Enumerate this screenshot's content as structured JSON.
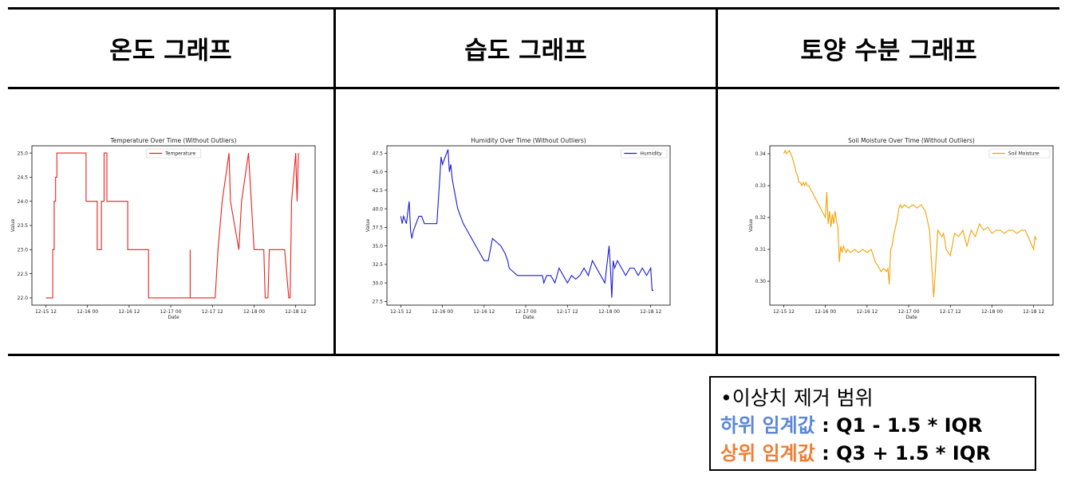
{
  "panels": [
    {
      "title": "온도 그래프"
    },
    {
      "title": "습도 그래프"
    },
    {
      "title": "토양 수분 그래프"
    }
  ],
  "note": {
    "heading": "•이상치 제거 범위",
    "lower_label": "하위 임계값",
    "lower_formula": ": Q1 - 1.5 * IQR",
    "upper_label": "상위 임계값",
    "upper_formula": ": Q3 + 1.5 * IQR"
  },
  "chart_data": [
    {
      "type": "line",
      "title": "Temperature Over Time (Without Outliers)",
      "xlabel": "Date",
      "ylabel": "Value",
      "legend": {
        "label": "Temperature",
        "position": "upper-center"
      },
      "color": "#e8201e",
      "ylim": [
        21.85,
        25.15
      ],
      "yticks": [
        "22.0",
        "22.5",
        "23.0",
        "23.5",
        "24.0",
        "24.5",
        "25.0"
      ],
      "xlim": [
        -0.167,
        3.233
      ],
      "xtick_labels": [
        "12-15 12",
        "12-16 00",
        "12-16 12",
        "12-17 00",
        "12-17 12",
        "12-18 00",
        "12-18 12"
      ],
      "x": [
        0.0,
        0.083,
        0.083,
        0.1,
        0.1,
        0.117,
        0.117,
        0.133,
        0.133,
        0.483,
        0.483,
        0.617,
        0.617,
        0.667,
        0.667,
        0.7,
        0.7,
        0.733,
        0.733,
        0.983,
        0.983,
        1.233,
        1.233,
        1.233,
        1.233,
        1.233,
        1.733,
        1.733,
        1.733,
        1.733,
        1.733,
        1.733,
        1.883,
        1.883,
        1.883,
        1.883,
        2.033,
        2.033,
        2.067,
        2.067,
        2.117,
        2.117,
        2.2,
        2.2,
        2.217,
        2.217,
        2.317,
        2.317,
        2.35,
        2.35,
        2.433,
        2.433,
        2.467,
        2.467,
        2.5,
        2.5,
        2.617,
        2.617,
        2.633,
        2.633,
        2.667,
        2.667,
        2.683,
        2.683,
        2.867,
        2.867,
        2.917,
        2.917,
        2.933,
        2.933,
        2.95,
        2.95,
        3.0,
        3.0,
        3.017,
        3.017,
        3.033
      ],
      "y": [
        22.0,
        22.0,
        23.0,
        23.0,
        24.0,
        24.0,
        24.5,
        24.5,
        25.0,
        25.0,
        24.0,
        24.0,
        23.0,
        23.0,
        24.0,
        24.0,
        25.0,
        25.0,
        24.0,
        24.0,
        23.0,
        23.0,
        22.0,
        22.0,
        22.0,
        22.0,
        22.0,
        22.0,
        23.0,
        23.0,
        22.0,
        22.0,
        22.0,
        22.0,
        22.0,
        22.0,
        22.0,
        22.0,
        23.0,
        23.0,
        24.0,
        24.0,
        25.0,
        25.0,
        24.0,
        24.0,
        23.0,
        23.0,
        24.0,
        24.0,
        25.0,
        25.0,
        24.0,
        24.0,
        23.0,
        23.0,
        23.0,
        23.0,
        22.0,
        22.0,
        22.0,
        22.0,
        23.0,
        23.0,
        23.0,
        23.0,
        22.0,
        22.0,
        22.0,
        22.0,
        24.0,
        24.0,
        25.0,
        25.0,
        24.0,
        24.0,
        25.0
      ]
    },
    {
      "type": "line",
      "title": "Humidity Over Time (Without Outliers)",
      "xlabel": "Date",
      "ylabel": "Value",
      "legend": {
        "label": "Humidity",
        "position": "upper-right"
      },
      "color": "#1a1adb",
      "ylim": [
        27.0,
        48.5
      ],
      "yticks": [
        "27.5",
        "30.0",
        "32.5",
        "35.0",
        "37.5",
        "40.0",
        "42.5",
        "45.0",
        "47.5"
      ],
      "xlim": [
        -0.167,
        3.233
      ],
      "xtick_labels": [
        "12-15 12",
        "12-16 00",
        "12-16 12",
        "12-17 00",
        "12-17 12",
        "12-18 00",
        "12-18 12"
      ],
      "x": [
        0.0,
        0.017,
        0.033,
        0.067,
        0.1,
        0.117,
        0.133,
        0.15,
        0.183,
        0.217,
        0.25,
        0.283,
        0.4,
        0.433,
        0.45,
        0.467,
        0.483,
        0.5,
        0.533,
        0.567,
        0.583,
        0.6,
        0.617,
        0.65,
        0.683,
        0.717,
        0.75,
        0.8,
        0.85,
        0.9,
        0.95,
        1.0,
        1.05,
        1.1,
        1.15,
        1.2,
        1.25,
        1.283,
        1.3,
        1.35,
        1.4,
        1.5,
        1.6,
        1.7,
        1.717,
        1.75,
        1.8,
        1.85,
        1.9,
        1.95,
        2.0,
        2.05,
        2.1,
        2.15,
        2.2,
        2.25,
        2.3,
        2.35,
        2.4,
        2.45,
        2.5,
        2.517,
        2.533,
        2.55,
        2.567,
        2.6,
        2.65,
        2.7,
        2.75,
        2.8,
        2.85,
        2.9,
        2.95,
        3.0,
        3.017,
        3.033
      ],
      "y": [
        39.0,
        38.0,
        39.0,
        38.0,
        41.0,
        37.0,
        36.0,
        37.0,
        38.0,
        39.0,
        39.0,
        38.0,
        38.0,
        38.0,
        41.0,
        44.0,
        47.0,
        46.0,
        47.0,
        48.0,
        45.0,
        46.0,
        44.0,
        42.0,
        40.0,
        39.0,
        38.0,
        37.0,
        36.0,
        35.0,
        34.0,
        33.0,
        33.0,
        36.0,
        35.5,
        35.0,
        34.0,
        33.0,
        32.0,
        31.5,
        31.0,
        31.0,
        31.0,
        31.0,
        30.0,
        31.0,
        31.0,
        30.0,
        32.0,
        31.0,
        30.0,
        31.0,
        30.5,
        31.0,
        32.0,
        31.0,
        33.0,
        32.0,
        31.0,
        30.0,
        35.0,
        32.0,
        28.0,
        33.0,
        32.0,
        33.0,
        32.0,
        31.0,
        32.0,
        32.0,
        31.0,
        32.0,
        31.0,
        32.0,
        29.0,
        29.0
      ]
    },
    {
      "type": "line",
      "title": "Soil Moisture Over Time (Without Outliers)",
      "xlabel": "Date",
      "ylabel": "Value",
      "legend": {
        "label": "Soil Moisture",
        "position": "upper-right"
      },
      "color": "#f5a000",
      "ylim": [
        0.2925,
        0.3425
      ],
      "yticks": [
        "0.30",
        "0.31",
        "0.32",
        "0.33",
        "0.34"
      ],
      "xlim": [
        -0.167,
        3.233
      ],
      "xtick_labels": [
        "12-15 12",
        "12-16 00",
        "12-16 12",
        "12-17 00",
        "12-17 12",
        "12-18 00",
        "12-18 12"
      ],
      "x": [
        0.0,
        0.017,
        0.033,
        0.067,
        0.1,
        0.133,
        0.15,
        0.167,
        0.183,
        0.2,
        0.217,
        0.233,
        0.25,
        0.267,
        0.283,
        0.3,
        0.5,
        0.517,
        0.533,
        0.55,
        0.567,
        0.583,
        0.6,
        0.617,
        0.633,
        0.65,
        0.667,
        0.683,
        0.7,
        0.717,
        0.733,
        0.75,
        0.767,
        0.8,
        0.85,
        0.9,
        0.95,
        1.0,
        1.05,
        1.1,
        1.15,
        1.167,
        1.2,
        1.233,
        1.25,
        1.267,
        1.283,
        1.3,
        1.317,
        1.333,
        1.35,
        1.367,
        1.383,
        1.4,
        1.417,
        1.45,
        1.5,
        1.55,
        1.6,
        1.65,
        1.7,
        1.75,
        1.8,
        1.85,
        1.9,
        1.917,
        1.933,
        1.95,
        2.0,
        2.05,
        2.1,
        2.15,
        2.2,
        2.25,
        2.3,
        2.35,
        2.4,
        2.45,
        2.5,
        2.55,
        2.6,
        2.65,
        2.7,
        2.75,
        2.8,
        2.85,
        2.9,
        2.95,
        3.0,
        3.017,
        3.033
      ],
      "y": [
        0.34,
        0.341,
        0.34,
        0.341,
        0.339,
        0.336,
        0.334,
        0.333,
        0.331,
        0.331,
        0.33,
        0.331,
        0.33,
        0.331,
        0.33,
        0.33,
        0.32,
        0.328,
        0.318,
        0.322,
        0.317,
        0.321,
        0.318,
        0.322,
        0.319,
        0.317,
        0.306,
        0.311,
        0.309,
        0.311,
        0.31,
        0.309,
        0.31,
        0.309,
        0.31,
        0.309,
        0.31,
        0.309,
        0.31,
        0.306,
        0.304,
        0.303,
        0.304,
        0.303,
        0.304,
        0.299,
        0.31,
        0.311,
        0.314,
        0.316,
        0.318,
        0.32,
        0.323,
        0.324,
        0.323,
        0.324,
        0.323,
        0.324,
        0.323,
        0.324,
        0.322,
        0.316,
        0.295,
        0.316,
        0.314,
        0.315,
        0.313,
        0.31,
        0.308,
        0.315,
        0.314,
        0.316,
        0.311,
        0.316,
        0.314,
        0.318,
        0.316,
        0.317,
        0.315,
        0.316,
        0.316,
        0.315,
        0.316,
        0.316,
        0.315,
        0.316,
        0.316,
        0.313,
        0.31,
        0.314,
        0.313
      ]
    }
  ]
}
